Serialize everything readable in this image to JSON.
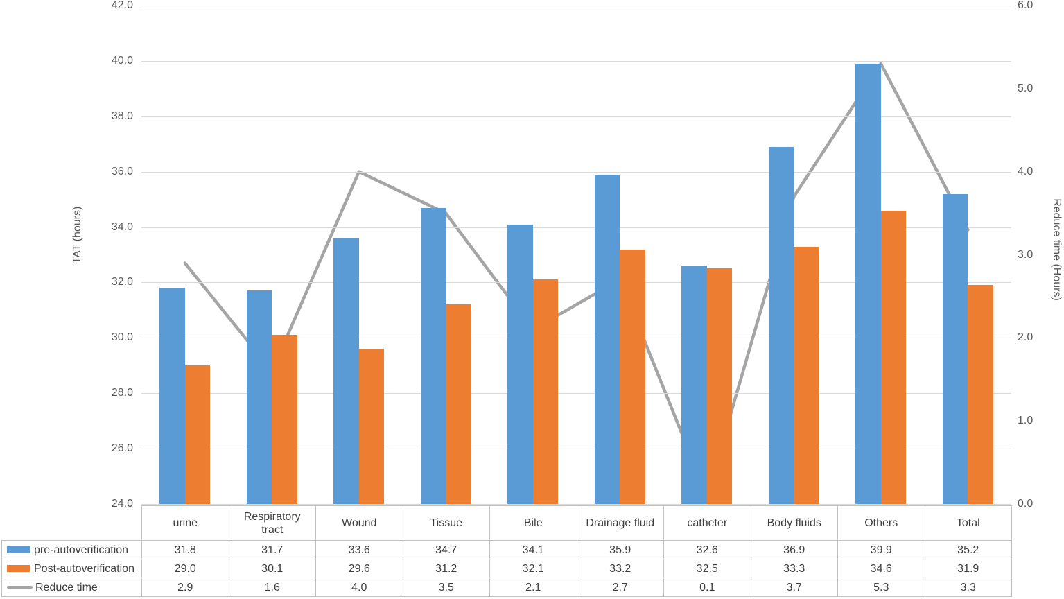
{
  "chart_data": {
    "type": "combo bar+line (dual axis) with data table",
    "title": "",
    "categories": [
      "urine",
      "Respiratory tract",
      "Wound",
      "Tissue",
      "Bile",
      "Drainage fluid",
      "catheter",
      "Body fluids",
      "Others",
      "Total"
    ],
    "series": [
      {
        "name": "pre-autoverification",
        "type": "bar",
        "axis": "left",
        "color": "#5B9BD5",
        "values": [
          31.8,
          31.7,
          33.6,
          34.7,
          34.1,
          35.9,
          32.6,
          36.9,
          39.9,
          35.2
        ]
      },
      {
        "name": "Post-autoverification",
        "type": "bar",
        "axis": "left",
        "color": "#ED7D31",
        "values": [
          29.0,
          30.1,
          29.6,
          31.2,
          32.1,
          33.2,
          32.5,
          33.3,
          34.6,
          31.9
        ]
      },
      {
        "name": "Reduce time",
        "type": "line",
        "axis": "right",
        "color": "#A5A5A5",
        "values": [
          2.9,
          1.6,
          4.0,
          3.5,
          2.1,
          2.7,
          0.1,
          3.7,
          5.3,
          3.3
        ]
      }
    ],
    "left_axis": {
      "label": "TAT (hours)",
      "min": 24.0,
      "max": 42.0,
      "step": 2.0,
      "ticks": [
        "42.0",
        "40.0",
        "38.0",
        "36.0",
        "34.0",
        "32.0",
        "30.0",
        "28.0",
        "26.0",
        "24.0"
      ]
    },
    "right_axis": {
      "label": "Reduce time (Hours)",
      "min": 0.0,
      "max": 6.0,
      "step": 1.0,
      "ticks": [
        "6.0",
        "5.0",
        "4.0",
        "3.0",
        "2.0",
        "1.0",
        "0.0"
      ]
    },
    "grid": {
      "horizontal": true,
      "vertical": false,
      "color": "#D9D9D9"
    },
    "legend_position": "table left column",
    "value_format": "one decimal place"
  },
  "colors": {
    "gridline": "#D9D9D9",
    "table_border": "#BFBFBF",
    "axis_text": "#595959",
    "table_text": "#3f3f3f"
  }
}
